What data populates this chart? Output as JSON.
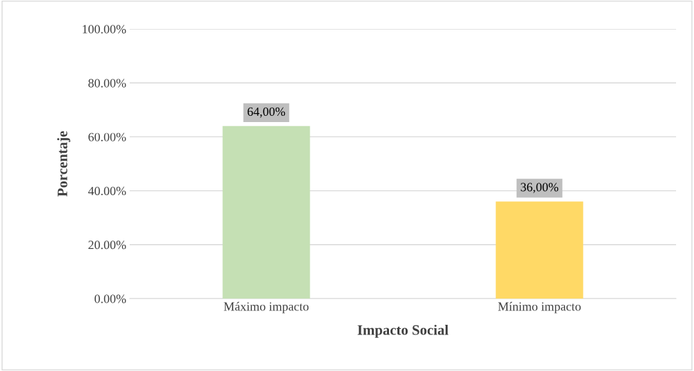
{
  "chart_data": {
    "type": "bar",
    "xlabel": "Impacto Social",
    "ylabel": "Porcentaje",
    "categories": [
      "Máximo impacto",
      "Mínimo impacto"
    ],
    "values": [
      64,
      36
    ],
    "colors": [
      "#c5e0b4",
      "#ffd966"
    ],
    "value_labels": [
      "64,00%",
      "36,00%"
    ],
    "ylim": [
      0,
      100
    ],
    "yticks": [
      {
        "value": 0,
        "label": "0.00%"
      },
      {
        "value": 20,
        "label": "20.00%"
      },
      {
        "value": 40,
        "label": "40.00%"
      },
      {
        "value": 60,
        "label": "60.00%"
      },
      {
        "value": 80,
        "label": "80.00%"
      },
      {
        "value": 100,
        "label": "100.00%"
      }
    ],
    "grid": "y",
    "legend": false
  }
}
